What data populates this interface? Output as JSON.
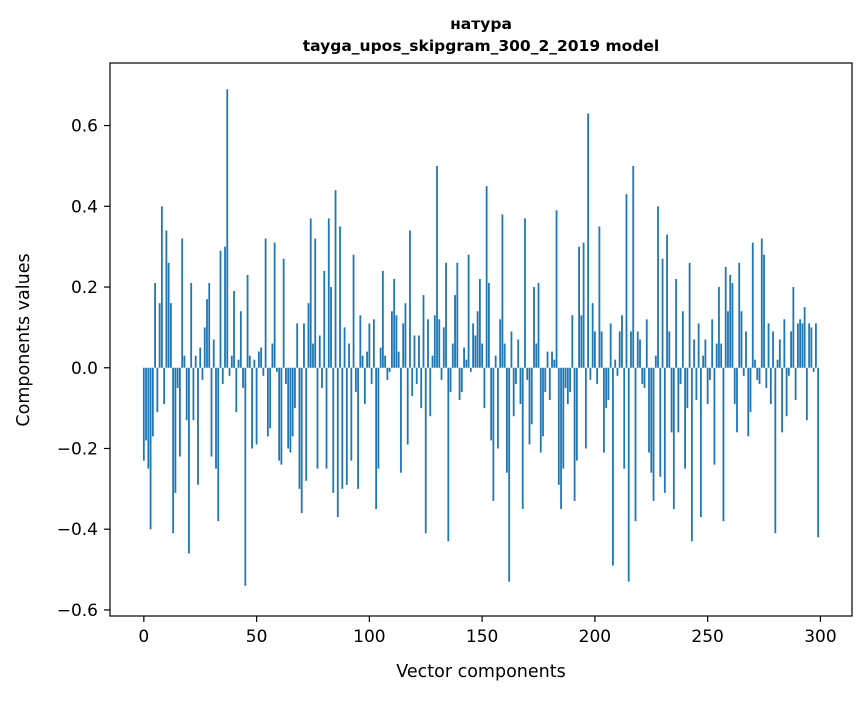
{
  "chart_data": {
    "type": "bar",
    "title": "натура",
    "subtitle": "tayga_upos_skipgram_300_2_2019 model",
    "xlabel": "Vector components",
    "ylabel": "Components values",
    "xlim": [
      -15,
      314
    ],
    "ylim": [
      -0.615,
      0.755
    ],
    "xticks": [
      0,
      50,
      100,
      150,
      200,
      250,
      300
    ],
    "xtick_labels": [
      "0",
      "50",
      "100",
      "150",
      "200",
      "250",
      "300"
    ],
    "yticks": [
      -0.6,
      -0.4,
      -0.2,
      0.0,
      0.2,
      0.4,
      0.6
    ],
    "ytick_labels": [
      "−0.6",
      "−0.4",
      "−0.2",
      "0.0",
      "0.2",
      "0.4",
      "0.6"
    ],
    "grid": false,
    "bar_color": "#1f77b4",
    "x": [
      0,
      1,
      2,
      3,
      4,
      5,
      6,
      7,
      8,
      9,
      10,
      11,
      12,
      13,
      14,
      15,
      16,
      17,
      18,
      19,
      20,
      21,
      22,
      23,
      24,
      25,
      26,
      27,
      28,
      29,
      30,
      31,
      32,
      33,
      34,
      35,
      36,
      37,
      38,
      39,
      40,
      41,
      42,
      43,
      44,
      45,
      46,
      47,
      48,
      49,
      50,
      51,
      52,
      53,
      54,
      55,
      56,
      57,
      58,
      59,
      60,
      61,
      62,
      63,
      64,
      65,
      66,
      67,
      68,
      69,
      70,
      71,
      72,
      73,
      74,
      75,
      76,
      77,
      78,
      79,
      80,
      81,
      82,
      83,
      84,
      85,
      86,
      87,
      88,
      89,
      90,
      91,
      92,
      93,
      94,
      95,
      96,
      97,
      98,
      99,
      100,
      101,
      102,
      103,
      104,
      105,
      106,
      107,
      108,
      109,
      110,
      111,
      112,
      113,
      114,
      115,
      116,
      117,
      118,
      119,
      120,
      121,
      122,
      123,
      124,
      125,
      126,
      127,
      128,
      129,
      130,
      131,
      132,
      133,
      134,
      135,
      136,
      137,
      138,
      139,
      140,
      141,
      142,
      143,
      144,
      145,
      146,
      147,
      148,
      149,
      150,
      151,
      152,
      153,
      154,
      155,
      156,
      157,
      158,
      159,
      160,
      161,
      162,
      163,
      164,
      165,
      166,
      167,
      168,
      169,
      170,
      171,
      172,
      173,
      174,
      175,
      176,
      177,
      178,
      179,
      180,
      181,
      182,
      183,
      184,
      185,
      186,
      187,
      188,
      189,
      190,
      191,
      192,
      193,
      194,
      195,
      196,
      197,
      198,
      199,
      200,
      201,
      202,
      203,
      204,
      205,
      206,
      207,
      208,
      209,
      210,
      211,
      212,
      213,
      214,
      215,
      216,
      217,
      218,
      219,
      220,
      221,
      222,
      223,
      224,
      225,
      226,
      227,
      228,
      229,
      230,
      231,
      232,
      233,
      234,
      235,
      236,
      237,
      238,
      239,
      240,
      241,
      242,
      243,
      244,
      245,
      246,
      247,
      248,
      249,
      250,
      251,
      252,
      253,
      254,
      255,
      256,
      257,
      258,
      259,
      260,
      261,
      262,
      263,
      264,
      265,
      266,
      267,
      268,
      269,
      270,
      271,
      272,
      273,
      274,
      275,
      276,
      277,
      278,
      279,
      280,
      281,
      282,
      283,
      284,
      285,
      286,
      287,
      288,
      289,
      290,
      291,
      292,
      293,
      294,
      295,
      296,
      297,
      298,
      299
    ],
    "values": [
      -0.23,
      -0.18,
      -0.25,
      -0.4,
      -0.17,
      0.21,
      -0.11,
      0.16,
      0.4,
      -0.09,
      0.34,
      0.26,
      0.16,
      -0.41,
      -0.31,
      -0.05,
      -0.22,
      0.32,
      0.03,
      -0.13,
      -0.46,
      0.21,
      -0.13,
      0.03,
      -0.29,
      0.05,
      -0.03,
      0.1,
      0.17,
      0.21,
      -0.22,
      0.07,
      -0.25,
      -0.38,
      0.29,
      -0.04,
      0.3,
      0.69,
      -0.02,
      0.03,
      0.19,
      -0.11,
      0.02,
      0.14,
      -0.05,
      -0.54,
      0.23,
      0.03,
      -0.2,
      0.02,
      -0.19,
      0.04,
      0.05,
      -0.02,
      0.32,
      -0.17,
      -0.15,
      0.06,
      0.31,
      -0.01,
      -0.23,
      -0.24,
      0.27,
      -0.04,
      -0.2,
      -0.21,
      -0.17,
      -0.1,
      0.11,
      -0.3,
      -0.36,
      0.11,
      -0.28,
      0.16,
      0.37,
      0.06,
      0.32,
      -0.25,
      0.08,
      -0.05,
      0.24,
      -0.25,
      0.37,
      0.2,
      -0.31,
      0.44,
      -0.37,
      0.35,
      -0.3,
      0.1,
      -0.29,
      0.06,
      -0.23,
      0.28,
      -0.06,
      -0.3,
      0.13,
      0.03,
      -0.09,
      0.04,
      0.11,
      -0.04,
      0.12,
      -0.35,
      -0.25,
      0.05,
      0.24,
      0.03,
      -0.03,
      -0.01,
      0.14,
      0.22,
      0.13,
      0.04,
      -0.26,
      0.11,
      0.16,
      -0.19,
      0.34,
      -0.07,
      0.08,
      -0.04,
      0.08,
      -0.1,
      0.18,
      -0.41,
      0.12,
      -0.12,
      0.03,
      0.13,
      0.5,
      0.12,
      -0.03,
      0.1,
      0.26,
      -0.43,
      -0.06,
      0.06,
      0.18,
      0.26,
      -0.08,
      -0.06,
      0.05,
      0.02,
      0.28,
      -0.01,
      0.11,
      0.08,
      0.14,
      0.22,
      0.06,
      -0.1,
      0.45,
      0.21,
      -0.18,
      -0.33,
      0.03,
      -0.2,
      0.12,
      0.38,
      0.06,
      -0.26,
      -0.53,
      0.09,
      -0.12,
      -0.04,
      0.07,
      -0.09,
      -0.35,
      0.37,
      -0.03,
      -0.19,
      -0.14,
      0.2,
      0.06,
      0.21,
      -0.21,
      -0.17,
      -0.06,
      0.04,
      -0.08,
      0.04,
      0.02,
      0.39,
      -0.29,
      -0.35,
      -0.25,
      -0.05,
      -0.09,
      -0.06,
      0.13,
      -0.33,
      -0.23,
      0.3,
      0.13,
      0.31,
      -0.2,
      0.63,
      -0.03,
      0.16,
      0.09,
      -0.04,
      0.35,
      0.09,
      -0.21,
      -0.1,
      -0.08,
      0.11,
      -0.49,
      0.02,
      -0.02,
      0.09,
      0.13,
      -0.25,
      0.43,
      -0.53,
      0.09,
      0.5,
      -0.38,
      0.09,
      0.07,
      -0.04,
      -0.05,
      0.12,
      -0.21,
      -0.26,
      -0.33,
      0.03,
      0.4,
      -0.27,
      0.27,
      -0.31,
      0.33,
      0.09,
      -0.16,
      -0.35,
      0.22,
      -0.16,
      -0.04,
      0.14,
      -0.25,
      -0.1,
      0.26,
      -0.43,
      0.07,
      -0.08,
      0.11,
      -0.37,
      0.03,
      0.07,
      -0.09,
      -0.03,
      0.12,
      -0.24,
      0.06,
      0.2,
      0.06,
      -0.38,
      0.25,
      0.14,
      0.23,
      0.21,
      -0.09,
      -0.16,
      0.26,
      0.14,
      -0.02,
      0.09,
      -0.17,
      -0.11,
      0.31,
      0.02,
      -0.03,
      -0.04,
      0.32,
      0.28,
      -0.05,
      0.11,
      -0.09,
      0.09,
      -0.41,
      0.02,
      0.07,
      -0.16,
      0.12,
      -0.12,
      -0.02,
      0.09,
      0.2,
      -0.08,
      0.11,
      0.12,
      0.11,
      0.15,
      -0.13,
      0.11,
      0.1,
      -0.01,
      0.11,
      -0.42
    ]
  }
}
